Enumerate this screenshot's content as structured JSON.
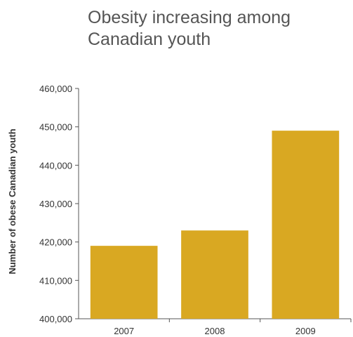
{
  "chart_data": {
    "type": "bar",
    "title": "Obesity increasing among Canadian youth",
    "xlabel": "",
    "ylabel": "Number of obese Canadian youth",
    "categories": [
      "2007",
      "2008",
      "2009"
    ],
    "values": [
      419000,
      423000,
      449000
    ],
    "ylim": [
      400000,
      460000
    ],
    "yticks": [
      400000,
      410000,
      420000,
      430000,
      440000,
      450000,
      460000
    ],
    "ytick_labels": [
      "400,000",
      "410,000",
      "420,000",
      "430,000",
      "440,000",
      "450,000",
      "460,000"
    ],
    "grid": false,
    "legend": "none",
    "bar_color": "#D9A822",
    "axis_color": "#555555"
  }
}
